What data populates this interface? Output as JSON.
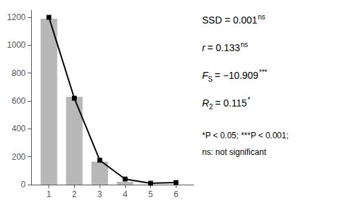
{
  "chart_data": {
    "type": "bar",
    "x": [
      1,
      2,
      3,
      4,
      5,
      6
    ],
    "xlim": [
      0.3,
      6.7
    ],
    "xticks": [
      1,
      2,
      3,
      4,
      5,
      6
    ],
    "ylim": [
      0,
      1250
    ],
    "yticks": [
      0,
      200,
      400,
      600,
      800,
      1000,
      1200
    ],
    "grid": false,
    "series": [
      {
        "type": "bar",
        "color": "#b8b8b8",
        "values": [
          1190,
          630,
          165,
          20,
          0,
          0
        ]
      },
      {
        "type": "line",
        "color": "#000000",
        "marker": "square",
        "values": [
          1200,
          620,
          175,
          40,
          10,
          15
        ]
      }
    ],
    "annotations": [
      [
        {
          "text": "SSD = 0.001"
        },
        {
          "text": "ns",
          "sup": true
        }
      ],
      [
        {
          "text": "r",
          "italic": true
        },
        {
          "text": "= 0.133"
        },
        {
          "text": "ns",
          "sup": true
        }
      ],
      [
        {
          "text": "F",
          "italic": true
        },
        {
          "text": "S",
          "sub": true
        },
        {
          "text": "= −10.909"
        },
        {
          "text": "***",
          "sup": true
        }
      ],
      [
        {
          "text": "R",
          "italic": true
        },
        {
          "text": "2",
          "sub": true
        },
        {
          "text": "= 0.115"
        },
        {
          "text": "*",
          "sup": true
        }
      ]
    ],
    "footnotes": [
      "*P < 0.05; ***P < 0.001;",
      "ns: not significant"
    ]
  }
}
